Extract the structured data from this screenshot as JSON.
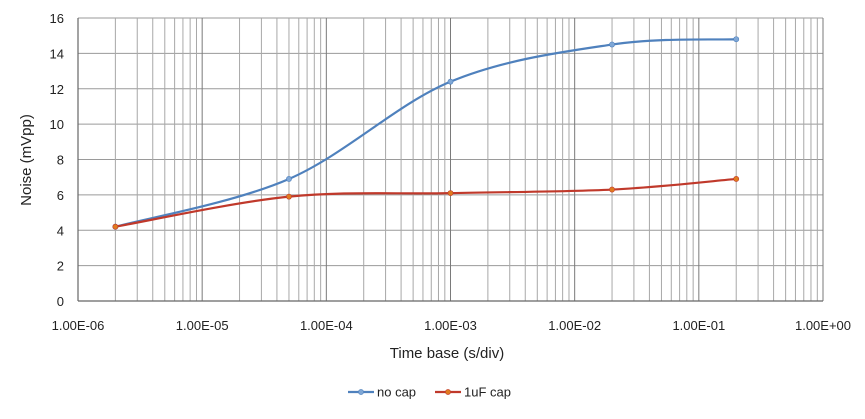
{
  "chart_data": {
    "type": "line",
    "title": "",
    "xlabel": "Time base (s/div)",
    "ylabel": "Noise (mVpp)",
    "x_scale": "log",
    "xlim": [
      1e-06,
      1
    ],
    "ylim": [
      0,
      16
    ],
    "x_ticks": [
      1e-06,
      1e-05,
      0.0001,
      0.001,
      0.01,
      0.1,
      1
    ],
    "x_tick_labels": [
      "1.00E-06",
      "1.00E-05",
      "1.00E-04",
      "1.00E-03",
      "1.00E-02",
      "1.00E-01",
      "1.00E+00"
    ],
    "y_ticks": [
      0,
      2,
      4,
      6,
      8,
      10,
      12,
      14,
      16
    ],
    "y_tick_labels": [
      "0",
      "2",
      "4",
      "6",
      "8",
      "10",
      "12",
      "14",
      "16"
    ],
    "grid": true,
    "legend_position": "bottom",
    "series": [
      {
        "name": "no cap",
        "color": "#4f81bd",
        "marker_color": "#7fa7d6",
        "x": [
          2e-06,
          5e-05,
          0.001,
          0.02,
          0.2
        ],
        "y": [
          4.2,
          6.9,
          12.4,
          14.5,
          14.8
        ]
      },
      {
        "name": "1uF  cap",
        "color": "#c0392b",
        "marker_color": "#e07b1f",
        "x": [
          2e-06,
          5e-05,
          0.001,
          0.02,
          0.2
        ],
        "y": [
          4.2,
          5.9,
          6.1,
          6.3,
          6.9
        ]
      }
    ]
  }
}
